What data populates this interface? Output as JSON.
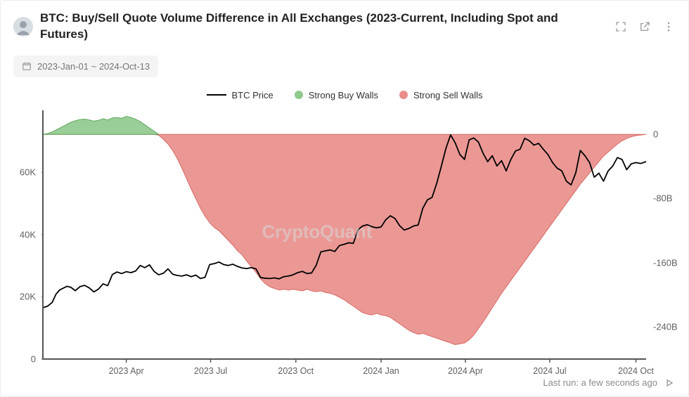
{
  "header": {
    "title": "BTC: Buy/Sell Quote Volume Difference in All Exchanges (2023-Current, Including Spot and Futures)"
  },
  "date_range": "2023-Jan-01 ~ 2024-Oct-13",
  "legend": {
    "price_label": "BTC Price",
    "buy_label": "Strong Buy Walls",
    "sell_label": "Strong Sell Walls"
  },
  "watermark": "CryptoQuant",
  "footer": {
    "last_run": "Last run: a few seconds ago"
  },
  "chart": {
    "type": "line+area",
    "background_color": "#ffffff",
    "axis_color": "#555555",
    "axis_width": 2,
    "x_domain": [
      0,
      651
    ],
    "x_ticks": [
      {
        "pos": 90,
        "label": "2023 Apr"
      },
      {
        "pos": 181,
        "label": "2023 Jul"
      },
      {
        "pos": 273,
        "label": "2023 Oct"
      },
      {
        "pos": 365,
        "label": "2024 Jan"
      },
      {
        "pos": 456,
        "label": "2024 Apr"
      },
      {
        "pos": 547,
        "label": "2024 Jul"
      },
      {
        "pos": 640,
        "label": "2024 Oct"
      }
    ],
    "y_left": {
      "domain": [
        0,
        80000
      ],
      "ticks": [
        {
          "v": 0,
          "label": "0"
        },
        {
          "v": 20000,
          "label": "20K"
        },
        {
          "v": 40000,
          "label": "40K"
        },
        {
          "v": 60000,
          "label": "60K"
        }
      ],
      "show_tick_mark": true,
      "tick_color": "#777",
      "label_fontsize": 13
    },
    "y_right": {
      "domain": [
        -280000000000.0,
        30000000000.0
      ],
      "ticks": [
        {
          "v": 0,
          "label": "0"
        },
        {
          "v": -80000000000.0,
          "label": "-80B"
        },
        {
          "v": -160000000000.0,
          "label": "-160B"
        },
        {
          "v": -240000000000.0,
          "label": "-240B"
        }
      ],
      "label_fontsize": 13
    },
    "btc_price": {
      "color": "#000000",
      "width": 1.8,
      "points": [
        [
          0,
          16500
        ],
        [
          5,
          17000
        ],
        [
          10,
          18200
        ],
        [
          14,
          20800
        ],
        [
          18,
          22200
        ],
        [
          22,
          22800
        ],
        [
          26,
          23400
        ],
        [
          30,
          23100
        ],
        [
          35,
          22000
        ],
        [
          40,
          23300
        ],
        [
          45,
          23700
        ],
        [
          50,
          22900
        ],
        [
          55,
          21600
        ],
        [
          60,
          22500
        ],
        [
          65,
          24200
        ],
        [
          70,
          23600
        ],
        [
          75,
          27200
        ],
        [
          80,
          28000
        ],
        [
          85,
          27500
        ],
        [
          90,
          28100
        ],
        [
          95,
          27800
        ],
        [
          100,
          28300
        ],
        [
          105,
          30100
        ],
        [
          110,
          29400
        ],
        [
          115,
          30300
        ],
        [
          120,
          28200
        ],
        [
          125,
          27100
        ],
        [
          130,
          27600
        ],
        [
          135,
          29000
        ],
        [
          140,
          27300
        ],
        [
          145,
          26900
        ],
        [
          150,
          26700
        ],
        [
          155,
          27100
        ],
        [
          160,
          26500
        ],
        [
          165,
          27000
        ],
        [
          170,
          25900
        ],
        [
          175,
          26300
        ],
        [
          180,
          30400
        ],
        [
          185,
          30700
        ],
        [
          190,
          31200
        ],
        [
          195,
          30400
        ],
        [
          200,
          30100
        ],
        [
          205,
          30500
        ],
        [
          210,
          29800
        ],
        [
          215,
          29300
        ],
        [
          220,
          29100
        ],
        [
          225,
          29400
        ],
        [
          230,
          29000
        ],
        [
          235,
          26200
        ],
        [
          240,
          26000
        ],
        [
          245,
          25900
        ],
        [
          250,
          26100
        ],
        [
          255,
          25800
        ],
        [
          260,
          26500
        ],
        [
          265,
          26700
        ],
        [
          270,
          27100
        ],
        [
          275,
          27800
        ],
        [
          280,
          28200
        ],
        [
          285,
          27500
        ],
        [
          290,
          27700
        ],
        [
          295,
          30200
        ],
        [
          300,
          34500
        ],
        [
          305,
          34800
        ],
        [
          310,
          35100
        ],
        [
          315,
          34600
        ],
        [
          320,
          36500
        ],
        [
          325,
          36900
        ],
        [
          330,
          37400
        ],
        [
          335,
          37200
        ],
        [
          340,
          41500
        ],
        [
          345,
          42800
        ],
        [
          350,
          43200
        ],
        [
          355,
          42600
        ],
        [
          360,
          42200
        ],
        [
          365,
          42500
        ],
        [
          370,
          44800
        ],
        [
          375,
          46100
        ],
        [
          380,
          45200
        ],
        [
          385,
          42900
        ],
        [
          390,
          41500
        ],
        [
          395,
          42000
        ],
        [
          400,
          42800
        ],
        [
          405,
          43100
        ],
        [
          410,
          48500
        ],
        [
          415,
          51200
        ],
        [
          420,
          52000
        ],
        [
          425,
          56500
        ],
        [
          430,
          62000
        ],
        [
          435,
          67800
        ],
        [
          440,
          72100
        ],
        [
          445,
          69500
        ],
        [
          450,
          65800
        ],
        [
          455,
          64200
        ],
        [
          460,
          70500
        ],
        [
          465,
          71100
        ],
        [
          470,
          69800
        ],
        [
          475,
          66200
        ],
        [
          480,
          63500
        ],
        [
          485,
          65400
        ],
        [
          490,
          62100
        ],
        [
          495,
          63800
        ],
        [
          500,
          60500
        ],
        [
          505,
          64200
        ],
        [
          510,
          66900
        ],
        [
          515,
          67500
        ],
        [
          520,
          71000
        ],
        [
          525,
          70200
        ],
        [
          530,
          68800
        ],
        [
          535,
          69400
        ],
        [
          540,
          67500
        ],
        [
          545,
          65800
        ],
        [
          550,
          63200
        ],
        [
          555,
          61400
        ],
        [
          560,
          60500
        ],
        [
          565,
          57200
        ],
        [
          570,
          56000
        ],
        [
          575,
          59800
        ],
        [
          580,
          67100
        ],
        [
          585,
          65400
        ],
        [
          590,
          63200
        ],
        [
          595,
          58500
        ],
        [
          600,
          59800
        ],
        [
          605,
          57200
        ],
        [
          610,
          60500
        ],
        [
          615,
          62100
        ],
        [
          620,
          64800
        ],
        [
          625,
          64200
        ],
        [
          630,
          60900
        ],
        [
          635,
          62800
        ],
        [
          640,
          63200
        ],
        [
          645,
          62900
        ],
        [
          651,
          63500
        ]
      ]
    },
    "volume_diff": {
      "positive_color": "#8fc98d",
      "positive_stroke": "#5fa95d",
      "negative_color": "#e98d89",
      "negative_stroke": "#d66862",
      "fill_opacity": 0.9,
      "points": [
        [
          0,
          0
        ],
        [
          5,
          1000000000.0
        ],
        [
          10,
          3000000000.0
        ],
        [
          15,
          6000000000.0
        ],
        [
          20,
          9000000000.0
        ],
        [
          25,
          12000000000.0
        ],
        [
          30,
          15000000000.0
        ],
        [
          35,
          17000000000.0
        ],
        [
          40,
          18500000000.0
        ],
        [
          45,
          19000000000.0
        ],
        [
          50,
          18000000000.0
        ],
        [
          55,
          16500000000.0
        ],
        [
          60,
          17500000000.0
        ],
        [
          65,
          19500000000.0
        ],
        [
          70,
          18000000000.0
        ],
        [
          75,
          20500000000.0
        ],
        [
          80,
          21000000000.0
        ],
        [
          85,
          20000000000.0
        ],
        [
          90,
          22500000000.0
        ],
        [
          95,
          21000000000.0
        ],
        [
          100,
          19000000000.0
        ],
        [
          105,
          16000000000.0
        ],
        [
          110,
          12000000000.0
        ],
        [
          115,
          8000000000.0
        ],
        [
          120,
          4000000000.0
        ],
        [
          125,
          -1000000000.0
        ],
        [
          130,
          -6000000000.0
        ],
        [
          135,
          -12000000000.0
        ],
        [
          140,
          -20000000000.0
        ],
        [
          145,
          -30000000000.0
        ],
        [
          150,
          -42000000000.0
        ],
        [
          155,
          -55000000000.0
        ],
        [
          160,
          -68000000000.0
        ],
        [
          165,
          -80000000000.0
        ],
        [
          170,
          -92000000000.0
        ],
        [
          175,
          -102000000000.0
        ],
        [
          180,
          -110000000000.0
        ],
        [
          185,
          -116000000000.0
        ],
        [
          190,
          -120000000000.0
        ],
        [
          195,
          -126000000000.0
        ],
        [
          200,
          -132000000000.0
        ],
        [
          205,
          -138000000000.0
        ],
        [
          210,
          -145000000000.0
        ],
        [
          215,
          -150000000000.0
        ],
        [
          220,
          -158000000000.0
        ],
        [
          225,
          -165000000000.0
        ],
        [
          230,
          -172000000000.0
        ],
        [
          235,
          -180000000000.0
        ],
        [
          240,
          -186000000000.0
        ],
        [
          245,
          -190000000000.0
        ],
        [
          250,
          -192000000000.0
        ],
        [
          255,
          -194000000000.0
        ],
        [
          260,
          -193000000000.0
        ],
        [
          265,
          -194000000000.0
        ],
        [
          270,
          -193000000000.0
        ],
        [
          275,
          -194000000000.0
        ],
        [
          280,
          -195000000000.0
        ],
        [
          285,
          -193000000000.0
        ],
        [
          290,
          -195000000000.0
        ],
        [
          295,
          -196000000000.0
        ],
        [
          300,
          -195000000000.0
        ],
        [
          305,
          -197000000000.0
        ],
        [
          310,
          -198000000000.0
        ],
        [
          315,
          -200000000000.0
        ],
        [
          320,
          -203000000000.0
        ],
        [
          325,
          -206000000000.0
        ],
        [
          330,
          -210000000000.0
        ],
        [
          335,
          -214000000000.0
        ],
        [
          340,
          -218000000000.0
        ],
        [
          345,
          -222000000000.0
        ],
        [
          350,
          -224000000000.0
        ],
        [
          355,
          -225000000000.0
        ],
        [
          360,
          -223000000000.0
        ],
        [
          365,
          -225000000000.0
        ],
        [
          370,
          -226000000000.0
        ],
        [
          375,
          -228000000000.0
        ],
        [
          380,
          -232000000000.0
        ],
        [
          385,
          -236000000000.0
        ],
        [
          390,
          -240000000000.0
        ],
        [
          395,
          -244000000000.0
        ],
        [
          400,
          -247000000000.0
        ],
        [
          405,
          -249000000000.0
        ],
        [
          410,
          -248000000000.0
        ],
        [
          415,
          -250000000000.0
        ],
        [
          420,
          -252000000000.0
        ],
        [
          425,
          -254000000000.0
        ],
        [
          430,
          -256000000000.0
        ],
        [
          435,
          -258000000000.0
        ],
        [
          440,
          -260000000000.0
        ],
        [
          445,
          -262000000000.0
        ],
        [
          450,
          -261000000000.0
        ],
        [
          455,
          -260000000000.0
        ],
        [
          460,
          -256000000000.0
        ],
        [
          465,
          -250000000000.0
        ],
        [
          470,
          -242000000000.0
        ],
        [
          475,
          -234000000000.0
        ],
        [
          480,
          -225000000000.0
        ],
        [
          485,
          -216000000000.0
        ],
        [
          490,
          -207000000000.0
        ],
        [
          495,
          -198000000000.0
        ],
        [
          500,
          -190000000000.0
        ],
        [
          505,
          -182000000000.0
        ],
        [
          510,
          -174000000000.0
        ],
        [
          515,
          -166000000000.0
        ],
        [
          520,
          -158000000000.0
        ],
        [
          525,
          -150000000000.0
        ],
        [
          530,
          -142000000000.0
        ],
        [
          535,
          -134000000000.0
        ],
        [
          540,
          -126000000000.0
        ],
        [
          545,
          -118000000000.0
        ],
        [
          550,
          -110000000000.0
        ],
        [
          555,
          -102000000000.0
        ],
        [
          560,
          -94000000000.0
        ],
        [
          565,
          -86000000000.0
        ],
        [
          570,
          -78000000000.0
        ],
        [
          575,
          -70000000000.0
        ],
        [
          580,
          -62000000000.0
        ],
        [
          585,
          -55000000000.0
        ],
        [
          590,
          -48000000000.0
        ],
        [
          595,
          -41000000000.0
        ],
        [
          600,
          -34000000000.0
        ],
        [
          605,
          -27000000000.0
        ],
        [
          610,
          -22000000000.0
        ],
        [
          615,
          -17000000000.0
        ],
        [
          620,
          -12000000000.0
        ],
        [
          625,
          -8000000000.0
        ],
        [
          630,
          -5000000000.0
        ],
        [
          635,
          -3000000000.0
        ],
        [
          640,
          -1500000000.0
        ],
        [
          645,
          -800000000.0
        ],
        [
          651,
          0
        ]
      ]
    }
  }
}
